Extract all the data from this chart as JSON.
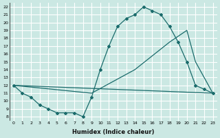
{
  "xlabel": "Humidex (Indice chaleur)",
  "background_color": "#cbe8e3",
  "grid_color": "#ffffff",
  "line_color": "#1a6b6b",
  "xlim": [
    -0.5,
    23.5
  ],
  "ylim": [
    7.5,
    22.5
  ],
  "xticks": [
    0,
    1,
    2,
    3,
    4,
    5,
    6,
    7,
    8,
    9,
    10,
    11,
    12,
    13,
    14,
    15,
    16,
    17,
    18,
    19,
    20,
    21,
    22,
    23
  ],
  "yticks": [
    8,
    9,
    10,
    11,
    12,
    13,
    14,
    15,
    16,
    17,
    18,
    19,
    20,
    21,
    22
  ],
  "curve1_x": [
    0,
    1,
    2,
    3,
    4,
    5,
    6,
    7,
    8,
    9,
    10,
    11,
    12,
    13,
    14,
    15,
    16,
    17,
    18,
    19,
    20,
    21,
    22,
    23
  ],
  "curve1_y": [
    12,
    11,
    10.5,
    9.5,
    9,
    8.5,
    8.5,
    8.5,
    8,
    10.5,
    14,
    17,
    19.5,
    20.5,
    21,
    22,
    21.5,
    21,
    19.5,
    17.5,
    15,
    12,
    11.5,
    11
  ],
  "curve2_x": [
    0,
    23
  ],
  "curve2_y": [
    12,
    11
  ],
  "curve3_x": [
    0,
    9,
    14,
    18,
    20,
    21,
    23
  ],
  "curve3_y": [
    12,
    11,
    14,
    17.5,
    19,
    15,
    11
  ],
  "marker": "D",
  "markersize": 2.0,
  "linewidth": 0.9
}
